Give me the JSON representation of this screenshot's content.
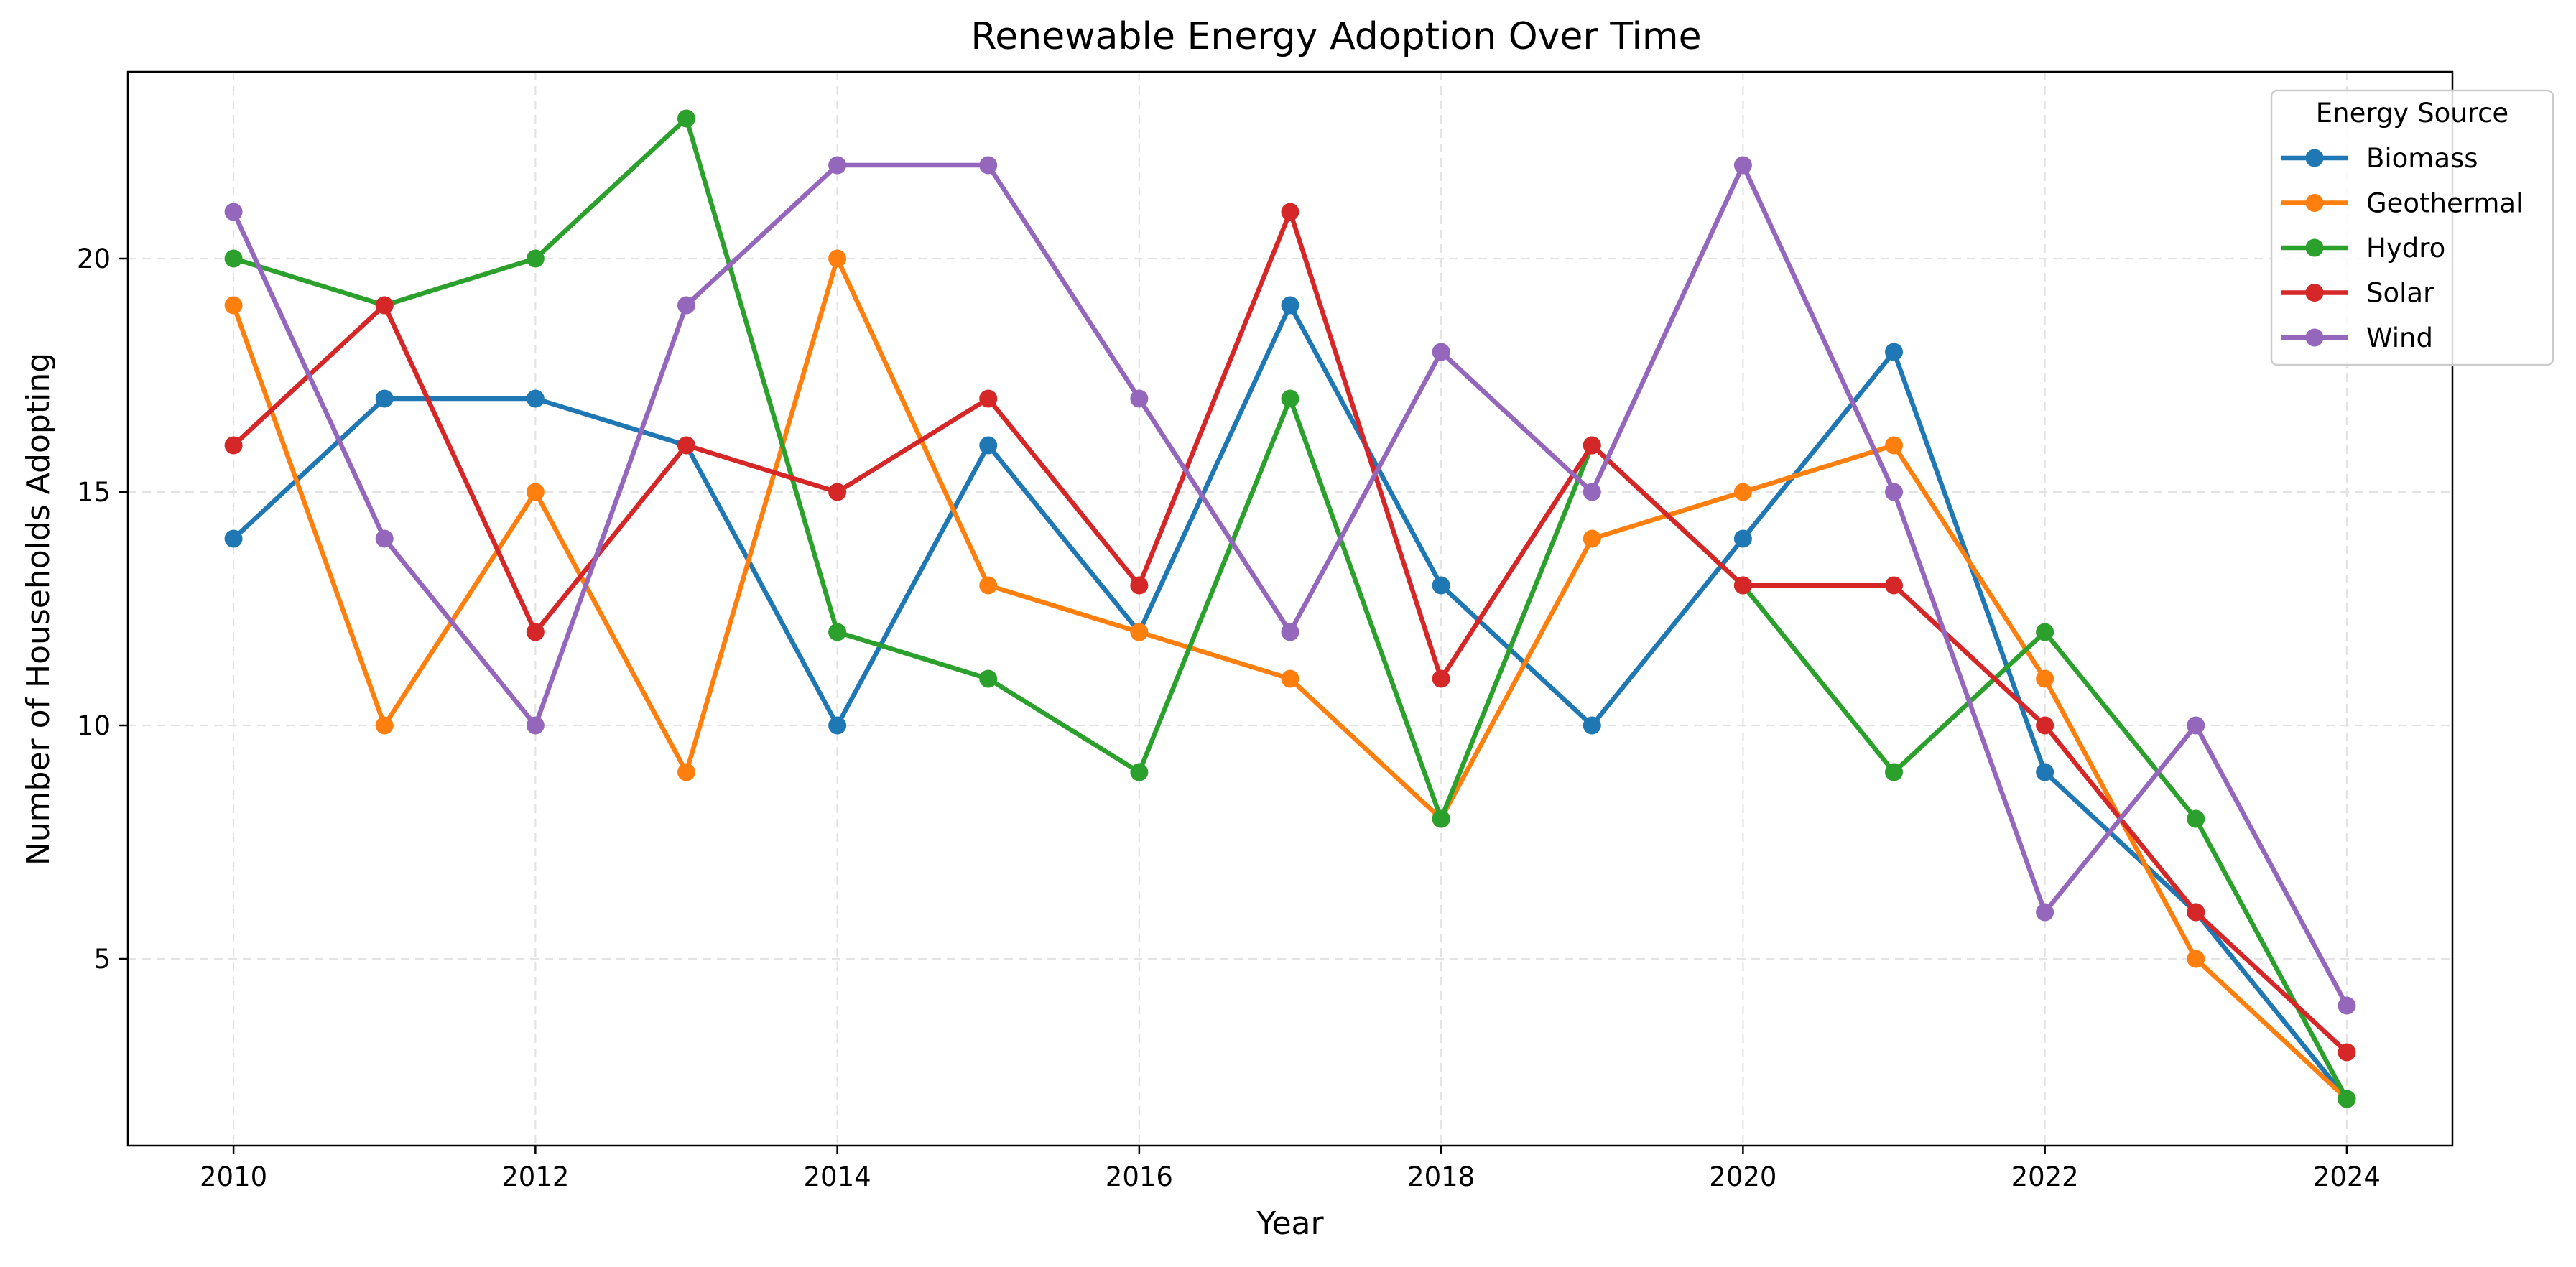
{
  "chart_data": {
    "type": "line",
    "title": "Renewable Energy Adoption Over Time",
    "xlabel": "Year",
    "ylabel": "Number of Households Adopting",
    "x": [
      2010,
      2011,
      2012,
      2013,
      2014,
      2015,
      2016,
      2017,
      2018,
      2019,
      2020,
      2021,
      2022,
      2023,
      2024
    ],
    "xlim": [
      2009.3,
      2024.7
    ],
    "ylim": [
      1.0,
      24.0
    ],
    "xticks": [
      2010,
      2012,
      2014,
      2016,
      2018,
      2020,
      2022,
      2024
    ],
    "yticks": [
      5,
      10,
      15,
      20
    ],
    "grid": true,
    "legend_title": "Energy Source",
    "legend_position": "top-right",
    "series": [
      {
        "name": "Biomass",
        "color": "#1f77b4",
        "values": [
          14,
          17,
          17,
          16,
          10,
          16,
          12,
          19,
          13,
          10,
          14,
          18,
          9,
          6,
          2
        ]
      },
      {
        "name": "Geothermal",
        "color": "#ff7f0e",
        "values": [
          19,
          10,
          15,
          9,
          20,
          13,
          12,
          11,
          8,
          14,
          15,
          16,
          11,
          5,
          2
        ]
      },
      {
        "name": "Hydro",
        "color": "#2ca02c",
        "values": [
          20,
          19,
          20,
          23,
          12,
          11,
          9,
          17,
          8,
          16,
          13,
          9,
          12,
          8,
          2
        ]
      },
      {
        "name": "Solar",
        "color": "#d62728",
        "values": [
          16,
          19,
          12,
          16,
          15,
          17,
          13,
          21,
          11,
          16,
          13,
          13,
          10,
          6,
          3
        ]
      },
      {
        "name": "Wind",
        "color": "#9467bd",
        "values": [
          21,
          14,
          10,
          19,
          22,
          22,
          17,
          12,
          18,
          15,
          22,
          15,
          6,
          10,
          4
        ]
      }
    ]
  }
}
